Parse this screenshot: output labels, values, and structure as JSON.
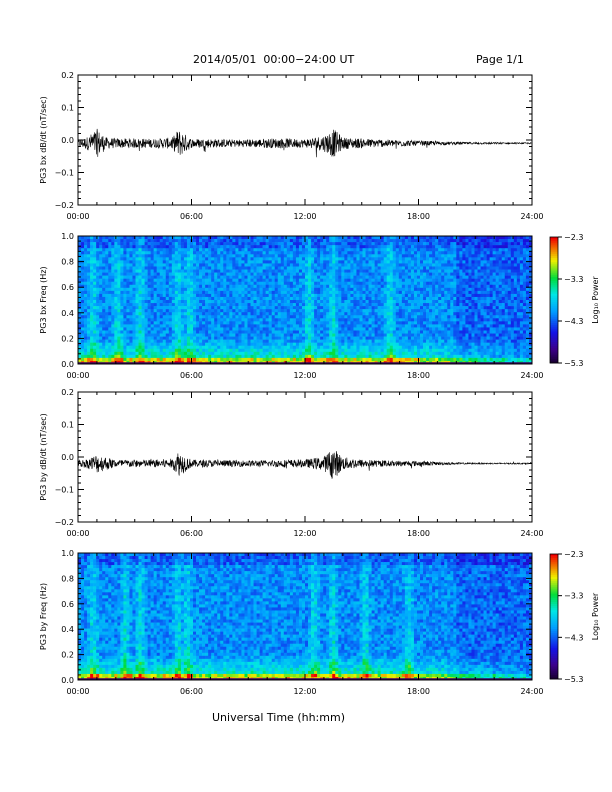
{
  "header": {
    "title": "2014/05/01  00:00−24:00 UT",
    "page": "Page 1/1"
  },
  "xlabel": "Universal Time (hh:mm)",
  "chart_data": [
    {
      "type": "line",
      "ylabel": "PG3 bx dB/dt (nT/sec)",
      "ylim": [
        -0.2,
        0.2
      ],
      "yticks": [
        "0.2",
        "0.1",
        "0.0",
        "−0.1",
        "−0.2"
      ],
      "xticks": [
        "00:00",
        "06:00",
        "12:00",
        "18:00",
        "24:00"
      ],
      "xlim": [
        0,
        24
      ],
      "series": [
        {
          "baseline": -0.01,
          "envelope_hours": [
            0,
            0.5,
            1,
            1.5,
            2,
            3,
            4,
            5,
            5.3,
            6,
            7,
            8,
            9,
            10,
            11,
            12,
            13,
            13.5,
            14,
            15,
            16,
            17,
            18,
            19,
            20,
            21,
            22,
            23,
            24
          ],
          "envelope_amplitude": [
            0.012,
            0.02,
            0.045,
            0.018,
            0.015,
            0.015,
            0.014,
            0.018,
            0.045,
            0.014,
            0.014,
            0.012,
            0.012,
            0.015,
            0.015,
            0.013,
            0.025,
            0.045,
            0.018,
            0.015,
            0.012,
            0.01,
            0.008,
            0.006,
            0.004,
            0.003,
            0.003,
            0.002,
            0.002
          ]
        }
      ]
    },
    {
      "type": "heatmap",
      "ylabel": "PG3 bx Freq (Hz)",
      "ylim": [
        0.0,
        1.0
      ],
      "yticks": [
        "1.0",
        "0.8",
        "0.6",
        "0.4",
        "0.2",
        "0.0"
      ],
      "xticks": [
        "00:00",
        "06:00",
        "12:00",
        "18:00",
        "24:00"
      ],
      "xlim": [
        0,
        24
      ],
      "colorbar": {
        "label": "Log₁₀ Power",
        "ticks": [
          "−2.3",
          "−3.3",
          "−4.3",
          "−5.3"
        ],
        "range": [
          -5.3,
          -2.3
        ]
      },
      "activity_hours": [
        0.8,
        2.1,
        3.3,
        5.3,
        5.9,
        12.2,
        13.5,
        16.5
      ]
    },
    {
      "type": "line",
      "ylabel": "PG3 by dB/dt (nT/sec)",
      "ylim": [
        -0.2,
        0.2
      ],
      "yticks": [
        "0.2",
        "0.1",
        "0.0",
        "−0.1",
        "−0.2"
      ],
      "xticks": [
        "00:00",
        "06:00",
        "12:00",
        "18:00",
        "24:00"
      ],
      "xlim": [
        0,
        24
      ],
      "series": [
        {
          "baseline": -0.02,
          "envelope_hours": [
            0,
            0.5,
            1,
            1.5,
            2,
            3,
            4,
            5,
            5.3,
            6,
            7,
            8,
            9,
            10,
            11,
            12,
            13,
            13.5,
            14,
            15,
            16,
            17,
            18,
            19,
            20,
            21,
            22,
            23,
            24
          ],
          "envelope_amplitude": [
            0.01,
            0.015,
            0.03,
            0.02,
            0.012,
            0.012,
            0.012,
            0.015,
            0.04,
            0.012,
            0.011,
            0.01,
            0.01,
            0.01,
            0.012,
            0.012,
            0.022,
            0.05,
            0.02,
            0.013,
            0.01,
            0.008,
            0.008,
            0.005,
            0.003,
            0.002,
            0.002,
            0.002,
            0.002
          ]
        }
      ]
    },
    {
      "type": "heatmap",
      "ylabel": "PG3 by Freq (Hz)",
      "ylim": [
        0.0,
        1.0
      ],
      "yticks": [
        "1.0",
        "0.8",
        "0.6",
        "0.4",
        "0.2",
        "0.0"
      ],
      "xticks": [
        "00:00",
        "06:00",
        "12:00",
        "18:00",
        "24:00"
      ],
      "xlim": [
        0,
        24
      ],
      "colorbar": {
        "label": "Log₁₀ Power",
        "ticks": [
          "−2.3",
          "−3.3",
          "−4.3",
          "−5.3"
        ],
        "range": [
          -5.3,
          -2.3
        ]
      },
      "activity_hours": [
        0.8,
        2.5,
        3.3,
        5.3,
        5.8,
        12.5,
        13.5,
        15.2,
        17.5
      ]
    }
  ]
}
